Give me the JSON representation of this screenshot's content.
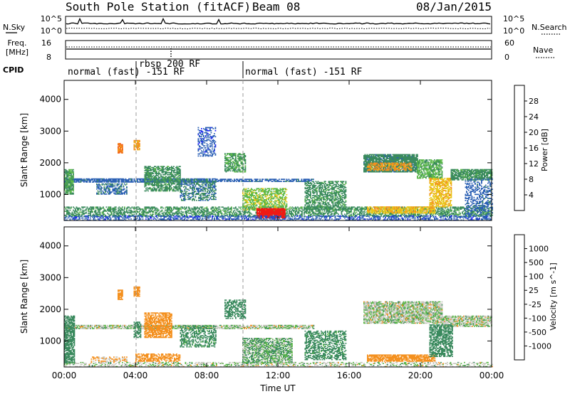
{
  "header": {
    "station": "South Pole Station (fitACF)",
    "beam": "Beam 08",
    "date": "08/Jan/2015"
  },
  "noise_panel": {
    "left_label": "N.Sky",
    "right_label": "N.Search",
    "left_ticks": [
      "10^5",
      "10^0"
    ],
    "right_ticks": [
      "10^5",
      "10^0"
    ]
  },
  "freq_panel": {
    "left_label": "Freq.",
    "left_unit": "[MHz]",
    "right_label": "Nave",
    "left_ticks": [
      "16",
      "8"
    ],
    "right_ticks": [
      "60",
      "0"
    ]
  },
  "cpid": {
    "label": "CPID",
    "segments": [
      {
        "text": "normal (fast) -151 RF",
        "start_h": 0,
        "end_h": 3.9
      },
      {
        "text": "rbsp 200 RF",
        "start_h": 3.9,
        "end_h": 10.0
      },
      {
        "text": "normal (fast) -151 RF",
        "start_h": 10.0,
        "end_h": 24.0
      }
    ]
  },
  "power_panel": {
    "ylabel": "Slant Range [km]",
    "colorbar_label": "Power [dB]",
    "colorbar_ticks": [
      "4",
      "8",
      "12",
      "16",
      "20",
      "24",
      "28"
    ]
  },
  "velocity_panel": {
    "ylabel": "Slant Range [km]",
    "colorbar_label": "Velocity [m s^-1]",
    "colorbar_ticks": [
      "1000",
      "500",
      "100",
      "25",
      "-25",
      "-100",
      "-500",
      "-1000"
    ]
  },
  "x_axis": {
    "label": "Time UT",
    "ticks": [
      "00:00",
      "04:00",
      "08:00",
      "12:00",
      "16:00",
      "20:00",
      "00:00"
    ]
  },
  "chart_data": [
    {
      "type": "heatmap",
      "title": "",
      "xlabel": "Time UT",
      "ylabel": "Slant Range [km]",
      "colorbar": "Power [dB]",
      "xlim": [
        0,
        24
      ],
      "ylim": [
        180,
        4600
      ],
      "yticks": [
        1000,
        2000,
        3000,
        4000
      ],
      "clim": [
        0,
        30
      ],
      "echo_regions": [
        {
          "t0": 0.0,
          "t1": 24.0,
          "r0": 300,
          "r1": 600,
          "value": 10,
          "density": 0.55
        },
        {
          "t0": 0.0,
          "t1": 8.5,
          "r0": 1380,
          "r1": 1480,
          "value": 6,
          "density": 0.8
        },
        {
          "t0": 8.5,
          "t1": 14.0,
          "r0": 1400,
          "r1": 1480,
          "value": 6,
          "density": 0.7
        },
        {
          "t0": 0.0,
          "t1": 0.5,
          "r0": 1000,
          "r1": 1800,
          "value": 11,
          "density": 0.8
        },
        {
          "t0": 1.8,
          "t1": 3.5,
          "r0": 1000,
          "r1": 1350,
          "value": 7,
          "density": 0.55
        },
        {
          "t0": 4.5,
          "t1": 6.5,
          "r0": 1100,
          "r1": 1900,
          "value": 10,
          "density": 0.65
        },
        {
          "t0": 6.5,
          "t1": 8.5,
          "r0": 800,
          "r1": 1500,
          "value": 8,
          "density": 0.5
        },
        {
          "t0": 7.5,
          "t1": 8.5,
          "r0": 2200,
          "r1": 3100,
          "value": 5,
          "density": 0.4
        },
        {
          "t0": 9.0,
          "t1": 10.2,
          "r0": 1700,
          "r1": 2300,
          "value": 11,
          "density": 0.6
        },
        {
          "t0": 10.0,
          "t1": 12.5,
          "r0": 500,
          "r1": 1200,
          "value": 14,
          "density": 0.6
        },
        {
          "t0": 10.8,
          "t1": 12.4,
          "r0": 250,
          "r1": 550,
          "value": 28,
          "density": 0.95
        },
        {
          "t0": 13.5,
          "t1": 15.8,
          "r0": 500,
          "r1": 1400,
          "value": 10,
          "density": 0.55
        },
        {
          "t0": 16.8,
          "t1": 19.8,
          "r0": 1700,
          "r1": 2250,
          "value": 9,
          "density": 0.85
        },
        {
          "t0": 17.0,
          "t1": 19.5,
          "r0": 1750,
          "r1": 2000,
          "value": 20,
          "density": 0.6
        },
        {
          "t0": 19.8,
          "t1": 21.2,
          "r0": 1500,
          "r1": 2100,
          "value": 12,
          "density": 0.7
        },
        {
          "t0": 17.0,
          "t1": 20.8,
          "r0": 400,
          "r1": 600,
          "value": 18,
          "density": 0.75
        },
        {
          "t0": 20.5,
          "t1": 21.7,
          "r0": 600,
          "r1": 1500,
          "value": 18,
          "density": 0.65
        },
        {
          "t0": 21.7,
          "t1": 24.0,
          "r0": 1450,
          "r1": 1800,
          "value": 10,
          "density": 0.8
        },
        {
          "t0": 22.5,
          "t1": 24.0,
          "r0": 350,
          "r1": 1500,
          "value": 6,
          "density": 0.4
        },
        {
          "t0": 3.0,
          "t1": 3.3,
          "r0": 2300,
          "r1": 2600,
          "value": 22,
          "density": 0.8
        },
        {
          "t0": 3.9,
          "t1": 4.2,
          "r0": 2400,
          "r1": 2700,
          "value": 20,
          "density": 0.8
        },
        {
          "t0": 0.0,
          "t1": 24.0,
          "r0": 180,
          "r1": 320,
          "value": 5,
          "density": 0.45
        }
      ]
    },
    {
      "type": "heatmap",
      "title": "",
      "xlabel": "Time UT",
      "ylabel": "Slant Range [km]",
      "colorbar": "Velocity [m s^-1]",
      "xlim": [
        0,
        24
      ],
      "ylim": [
        180,
        4600
      ],
      "yticks": [
        1000,
        2000,
        3000,
        4000
      ],
      "clim": [
        -1000,
        1000
      ],
      "echo_regions": [
        {
          "t0": 0.0,
          "t1": 24.0,
          "r0": 180,
          "r1": 320,
          "value": 0,
          "density": 0.4
        },
        {
          "t0": 0.0,
          "t1": 14.0,
          "r0": 1380,
          "r1": 1480,
          "value": 0,
          "density": 0.8
        },
        {
          "t0": 0.0,
          "t1": 0.6,
          "r0": 300,
          "r1": 1800,
          "value": 300,
          "density": 0.75
        },
        {
          "t0": 3.9,
          "t1": 4.3,
          "r0": 1100,
          "r1": 1600,
          "value": 300,
          "density": 0.6
        },
        {
          "t0": 4.5,
          "t1": 6.0,
          "r0": 1100,
          "r1": 1900,
          "value": -250,
          "density": 0.7
        },
        {
          "t0": 6.5,
          "t1": 8.5,
          "r0": 800,
          "r1": 1500,
          "value": 200,
          "density": 0.5
        },
        {
          "t0": 9.0,
          "t1": 10.2,
          "r0": 1700,
          "r1": 2300,
          "value": 300,
          "density": 0.55
        },
        {
          "t0": 10.0,
          "t1": 12.8,
          "r0": 300,
          "r1": 1100,
          "value": 80,
          "density": 0.7
        },
        {
          "t0": 13.5,
          "t1": 15.8,
          "r0": 400,
          "r1": 1300,
          "value": 200,
          "density": 0.5
        },
        {
          "t0": 16.8,
          "t1": 21.2,
          "r0": 1550,
          "r1": 2250,
          "value": 0,
          "density": 0.8
        },
        {
          "t0": 21.2,
          "t1": 24.0,
          "r0": 1450,
          "r1": 1800,
          "value": 0,
          "density": 0.8
        },
        {
          "t0": 17.0,
          "t1": 20.8,
          "r0": 350,
          "r1": 550,
          "value": -250,
          "density": 0.8
        },
        {
          "t0": 20.5,
          "t1": 21.8,
          "r0": 500,
          "r1": 1500,
          "value": 300,
          "density": 0.65
        },
        {
          "t0": 1.5,
          "t1": 3.5,
          "r0": 350,
          "r1": 500,
          "value": -150,
          "density": 0.5
        },
        {
          "t0": 4.0,
          "t1": 6.5,
          "r0": 350,
          "r1": 600,
          "value": -300,
          "density": 0.6
        },
        {
          "t0": 3.0,
          "t1": 3.3,
          "r0": 2300,
          "r1": 2600,
          "value": -300,
          "density": 0.8
        },
        {
          "t0": 3.9,
          "t1": 4.2,
          "r0": 2400,
          "r1": 2700,
          "value": -300,
          "density": 0.8
        }
      ]
    }
  ],
  "colors": {
    "power_scale": [
      "#1f1fff",
      "#2a5fb4",
      "#3a8a5e",
      "#5cb84a",
      "#e8c81a",
      "#f4901e",
      "#f25a12",
      "#ee1a14"
    ],
    "velocity_scale": [
      "#ee1a14",
      "#f25a12",
      "#f4901e",
      "#c8c8c0",
      "#c8c8c0",
      "#5cb84a",
      "#3a8a5e",
      "#2a5fb4",
      "#1f3fc8"
    ]
  }
}
